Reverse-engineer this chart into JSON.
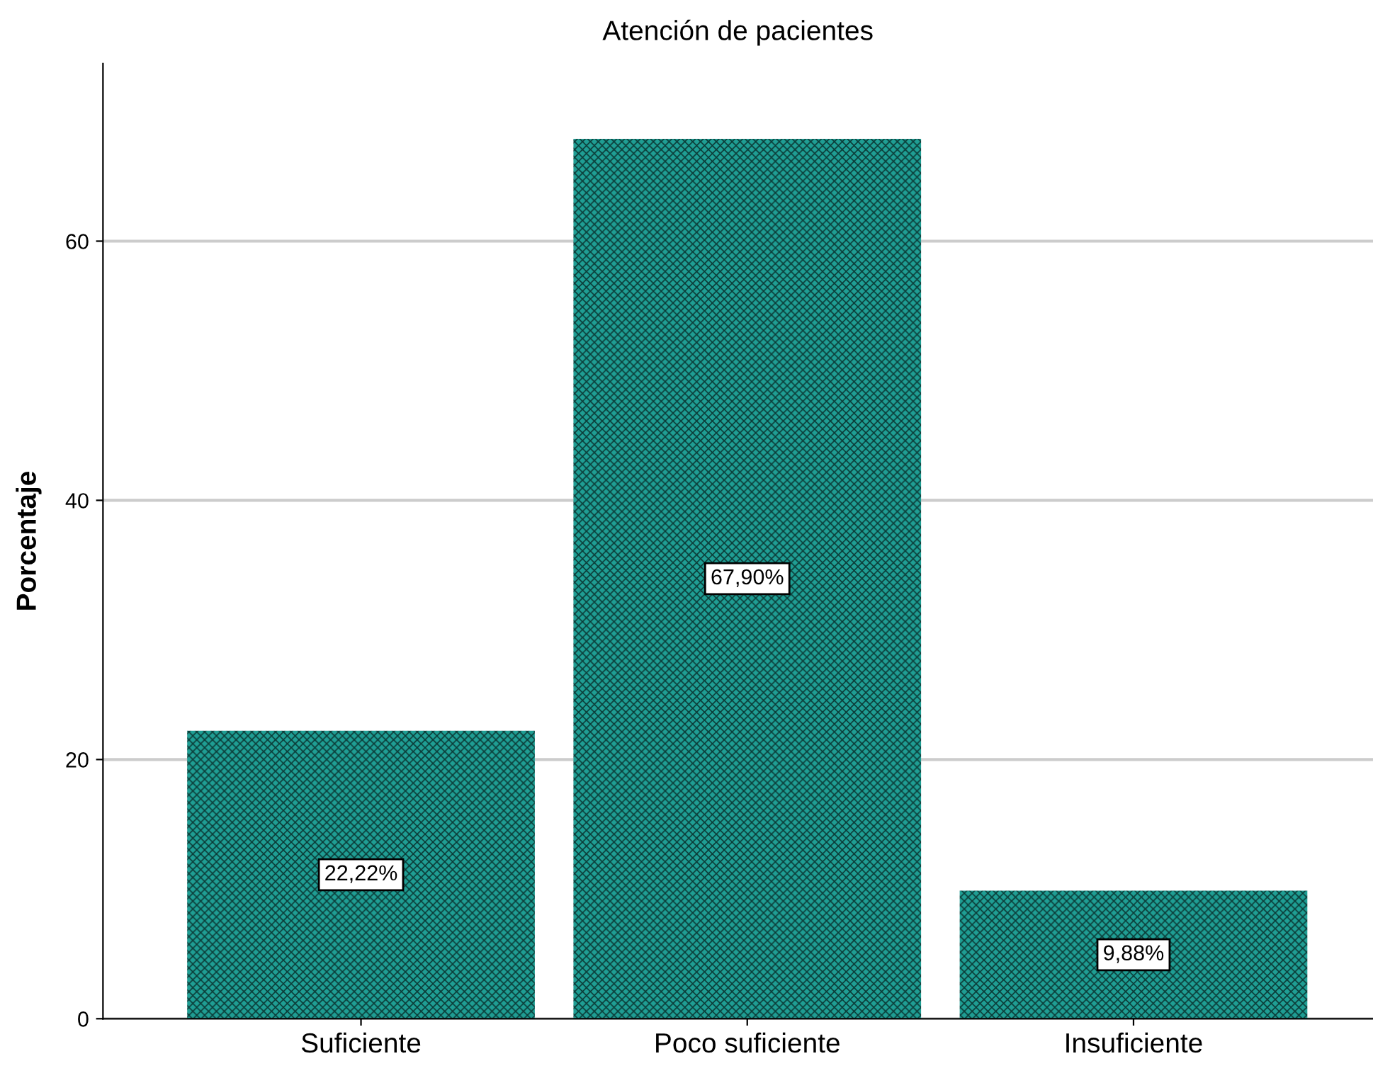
{
  "chart_data": {
    "type": "bar",
    "title": "Atención de pacientes",
    "ylabel": "Porcentaje",
    "categories": [
      "Suficiente",
      "Poco suficiente",
      "Insuficiente"
    ],
    "values": [
      22.22,
      67.9,
      9.88
    ],
    "value_labels": [
      "22,22%",
      "67,90%",
      "9,88%"
    ],
    "color": "#1f9e94",
    "ylim": [
      0,
      73.7
    ],
    "yticks": [
      0,
      20,
      40,
      60
    ],
    "grid": "y",
    "legend": false
  }
}
